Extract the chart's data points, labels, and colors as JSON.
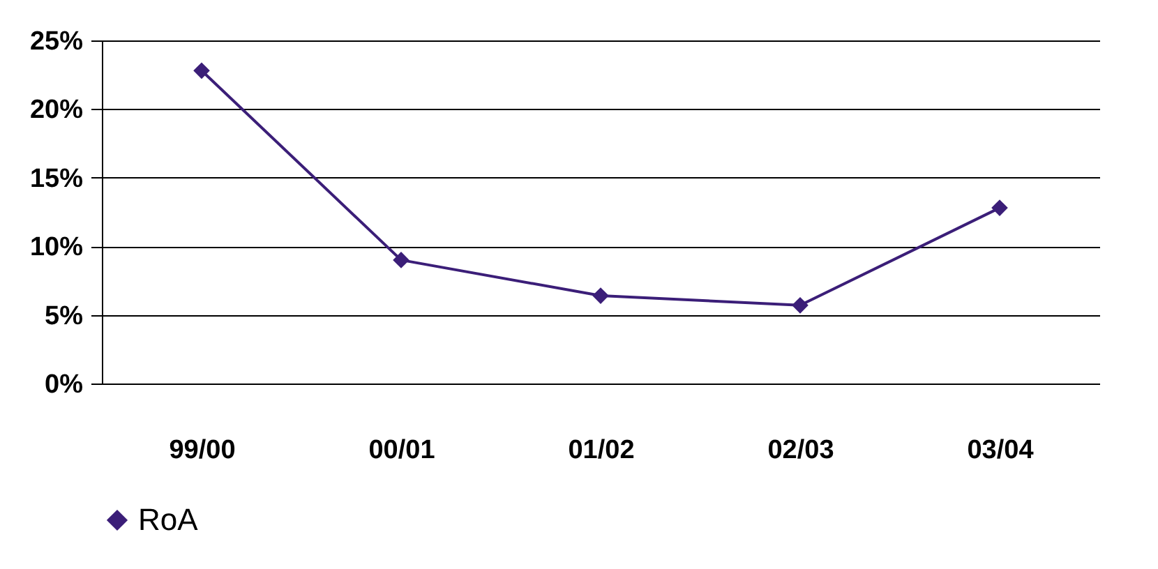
{
  "chart_data": {
    "type": "line",
    "categories": [
      "99/00",
      "00/01",
      "01/02",
      "02/03",
      "03/04"
    ],
    "series": [
      {
        "name": "RoA",
        "color": "#3b1e78",
        "values": [
          22.8,
          9.0,
          6.4,
          5.7,
          12.8
        ]
      }
    ],
    "ylim": [
      0,
      25
    ],
    "yticks": [
      {
        "value": 0,
        "label": "0%"
      },
      {
        "value": 5,
        "label": "5%"
      },
      {
        "value": 10,
        "label": "10%"
      },
      {
        "value": 15,
        "label": "15%"
      },
      {
        "value": 20,
        "label": "20%"
      },
      {
        "value": 25,
        "label": "25%"
      }
    ],
    "grid": "y",
    "legend": "bottom",
    "marker": "diamond",
    "line_style": "solid"
  }
}
